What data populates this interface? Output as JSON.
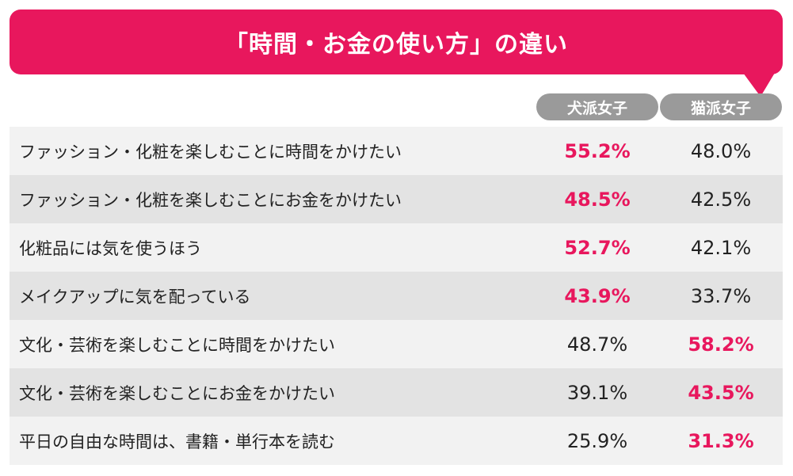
{
  "chart_data": {
    "type": "table",
    "title": "「時間・お金の使い方」の違い",
    "columns": [
      "犬派女子",
      "猫派女子"
    ],
    "rows": [
      {
        "label": "ファッション・化粧を楽しむことに時間をかけたい",
        "values": [
          "55.2%",
          "48.0%"
        ],
        "highlight": 0
      },
      {
        "label": "ファッション・化粧を楽しむことにお金をかけたい",
        "values": [
          "48.5%",
          "42.5%"
        ],
        "highlight": 0
      },
      {
        "label": "化粧品には気を使うほう",
        "values": [
          "52.7%",
          "42.1%"
        ],
        "highlight": 0
      },
      {
        "label": "メイクアップに気を配っている",
        "values": [
          "43.9%",
          "33.7%"
        ],
        "highlight": 0
      },
      {
        "label": "文化・芸術を楽しむことに時間をかけたい",
        "values": [
          "48.7%",
          "58.2%"
        ],
        "highlight": 1
      },
      {
        "label": "文化・芸術を楽しむことにお金をかけたい",
        "values": [
          "39.1%",
          "43.5%"
        ],
        "highlight": 1
      },
      {
        "label": "平日の自由な時間は、書籍・単行本を読む",
        "values": [
          "25.9%",
          "31.3%"
        ],
        "highlight": 1
      }
    ]
  },
  "colors": {
    "accent": "#e8175d",
    "header_pill": "#9a9a9a",
    "row_light": "#f2f2f2",
    "row_dark": "#e3e3e3",
    "text": "#222222"
  }
}
